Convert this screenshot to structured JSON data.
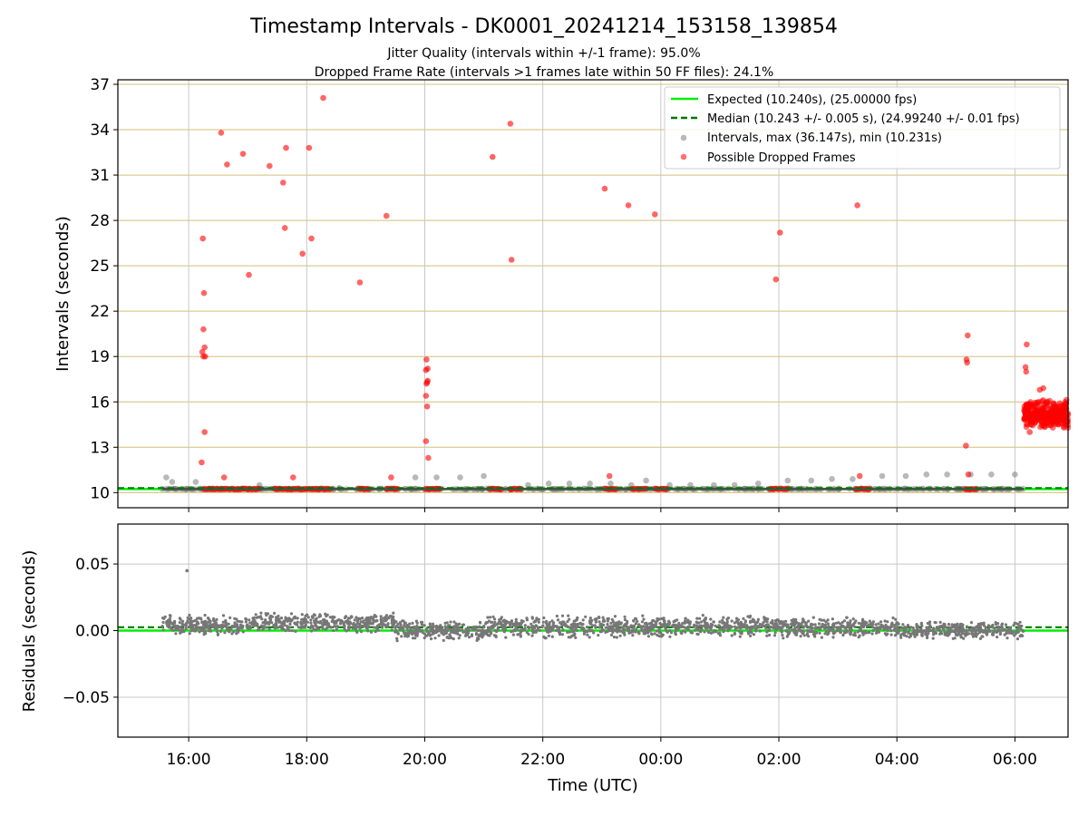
{
  "title": "Timestamp Intervals - DK0001_20241214_153158_139854",
  "subtitle_line1": "Jitter Quality (intervals within +/-1 frame): 95.0%",
  "subtitle_line2": "Dropped Frame Rate (intervals >1 frames late within 50 FF files): 24.1%",
  "colors": {
    "expected": "#00ee00",
    "median": "#007700",
    "intervals": "#808080",
    "dropped": "#ff0000",
    "grid_top": "#d4bf7a",
    "grid": "#c8c8c8"
  },
  "chart_data": [
    {
      "type": "scatter",
      "ylabel": "Intervals (seconds)",
      "ylim": [
        9.0,
        37.3
      ],
      "yticks": [
        "10",
        "13",
        "16",
        "19",
        "22",
        "25",
        "28",
        "31",
        "34",
        "37"
      ],
      "xticks": [
        "16:00",
        "18:00",
        "20:00",
        "22:00",
        "00:00",
        "02:00",
        "04:00",
        "06:00"
      ],
      "xlim_hours": [
        14.8,
        30.9
      ],
      "grid": true,
      "legend_position": "upper right",
      "legend": [
        "Expected (10.240s), (25.00000 fps)",
        "Median (10.243 +/- 0.005 s), (24.99240 +/- 0.01 fps)",
        "Intervals, max (36.147s), min (10.231s)",
        "Possible Dropped Frames"
      ],
      "series": [
        {
          "name": "Expected (10.240s), (25.00000 fps)",
          "type": "hline",
          "y": 10.24
        },
        {
          "name": "Median (10.243 +/- 0.005 s), (24.99240 +/- 0.01 fps)",
          "type": "hline",
          "y": 10.243
        },
        {
          "name": "Intervals, max (36.147s), min (10.231s)",
          "points": [
            [
              15.55,
              10.24
            ],
            [
              15.62,
              11.0
            ],
            [
              15.72,
              10.7
            ],
            [
              16.12,
              10.7
            ],
            [
              17.2,
              10.5
            ],
            [
              18.55,
              10.3
            ],
            [
              19.84,
              11.0
            ],
            [
              20.2,
              11.0
            ],
            [
              20.6,
              11.0
            ],
            [
              21.0,
              11.1
            ],
            [
              21.75,
              10.5
            ],
            [
              22.1,
              10.6
            ],
            [
              22.45,
              10.6
            ],
            [
              22.8,
              10.6
            ],
            [
              23.15,
              10.6
            ],
            [
              23.5,
              10.5
            ],
            [
              23.75,
              10.8
            ],
            [
              24.15,
              10.5
            ],
            [
              24.5,
              10.5
            ],
            [
              24.9,
              10.5
            ],
            [
              25.25,
              10.5
            ],
            [
              25.65,
              10.6
            ],
            [
              26.15,
              10.8
            ],
            [
              26.55,
              10.8
            ],
            [
              26.9,
              10.9
            ],
            [
              27.25,
              10.9
            ],
            [
              27.75,
              11.1
            ],
            [
              28.15,
              11.1
            ],
            [
              28.5,
              11.2
            ],
            [
              28.85,
              11.2
            ],
            [
              29.25,
              11.2
            ],
            [
              29.6,
              11.2
            ],
            [
              30.0,
              11.2
            ]
          ]
        },
        {
          "name": "Possible Dropped Frames",
          "points": [
            [
              16.24,
              26.8
            ],
            [
              16.26,
              23.2
            ],
            [
              16.25,
              20.8
            ],
            [
              16.23,
              19.3
            ],
            [
              16.27,
              19.6
            ],
            [
              16.25,
              19.0
            ],
            [
              16.28,
              19.0
            ],
            [
              16.27,
              14.0
            ],
            [
              16.22,
              12.0
            ],
            [
              16.55,
              33.8
            ],
            [
              16.65,
              31.7
            ],
            [
              16.6,
              11.0
            ],
            [
              16.92,
              32.4
            ],
            [
              17.02,
              24.4
            ],
            [
              17.37,
              31.6
            ],
            [
              17.6,
              30.5
            ],
            [
              17.65,
              32.8
            ],
            [
              17.63,
              27.5
            ],
            [
              17.77,
              11.0
            ],
            [
              17.93,
              25.8
            ],
            [
              18.04,
              32.8
            ],
            [
              18.08,
              26.8
            ],
            [
              18.28,
              36.1
            ],
            [
              18.9,
              23.9
            ],
            [
              19.35,
              28.3
            ],
            [
              19.43,
              11.0
            ],
            [
              20.03,
              18.8
            ],
            [
              20.05,
              18.2
            ],
            [
              20.02,
              18.1
            ],
            [
              20.04,
              17.3
            ],
            [
              20.03,
              17.2
            ],
            [
              20.05,
              17.4
            ],
            [
              20.02,
              16.4
            ],
            [
              20.04,
              15.7
            ],
            [
              20.02,
              13.4
            ],
            [
              20.06,
              12.3
            ],
            [
              21.15,
              32.2
            ],
            [
              21.45,
              34.4
            ],
            [
              21.47,
              25.4
            ],
            [
              23.05,
              30.1
            ],
            [
              23.13,
              11.1
            ],
            [
              23.45,
              29.0
            ],
            [
              23.9,
              28.4
            ],
            [
              25.95,
              24.1
            ],
            [
              26.02,
              27.2
            ],
            [
              27.33,
              29.0
            ],
            [
              27.37,
              11.1
            ],
            [
              29.2,
              20.4
            ],
            [
              29.18,
              18.8
            ],
            [
              29.19,
              18.6
            ],
            [
              29.17,
              13.1
            ],
            [
              29.21,
              11.2
            ],
            [
              30.2,
              19.8
            ],
            [
              30.18,
              18.3
            ],
            [
              30.19,
              18.0
            ],
            [
              30.25,
              14.0
            ],
            [
              30.42,
              16.8
            ],
            [
              30.48,
              16.9
            ],
            [
              30.83,
              14.3
            ],
            [
              30.86,
              14.5
            ],
            [
              30.87,
              15.9
            ]
          ],
          "dropped_clusters_hours": [
            [
              16.25,
              17.2
            ],
            [
              17.45,
              17.95
            ],
            [
              17.98,
              18.4
            ],
            [
              18.88,
              19.05
            ],
            [
              19.35,
              19.55
            ],
            [
              20.0,
              20.25
            ],
            [
              21.1,
              21.3
            ],
            [
              21.45,
              21.62
            ],
            [
              23.05,
              23.25
            ],
            [
              23.5,
              23.75
            ],
            [
              23.9,
              24.1
            ],
            [
              25.85,
              26.15
            ],
            [
              27.3,
              27.55
            ],
            [
              29.15,
              29.35
            ]
          ],
          "late_cloud": {
            "x_range": [
              30.15,
              30.9
            ],
            "y_center": 15.2,
            "y_spread": 1.0
          }
        }
      ]
    },
    {
      "type": "scatter",
      "xlabel": "Time (UTC)",
      "ylabel": "Residuals (seconds)",
      "ylim": [
        -0.08,
        0.08
      ],
      "yticks": [
        "−0.05",
        "0.00",
        "0.05"
      ],
      "xticks": [
        "16:00",
        "18:00",
        "20:00",
        "22:00",
        "00:00",
        "02:00",
        "04:00",
        "06:00"
      ],
      "xlim_hours": [
        14.8,
        30.9
      ],
      "grid": true,
      "series": [
        {
          "name": "Expected",
          "type": "hline",
          "y": 0.0
        },
        {
          "name": "Median",
          "type": "hline",
          "y": 0.0025
        },
        {
          "name": "Residuals",
          "x_range": [
            15.55,
            30.15
          ],
          "outlier": [
            15.97,
            0.045
          ],
          "band_segments": [
            [
              15.55,
              17.0,
              0.004,
              0.008
            ],
            [
              17.0,
              19.5,
              0.006,
              0.008
            ],
            [
              19.5,
              21.0,
              0.0,
              0.008
            ],
            [
              21.0,
              26.0,
              0.003,
              0.009
            ],
            [
              26.0,
              28.0,
              0.002,
              0.008
            ],
            [
              28.0,
              30.15,
              0.0,
              0.007
            ]
          ]
        }
      ]
    }
  ]
}
